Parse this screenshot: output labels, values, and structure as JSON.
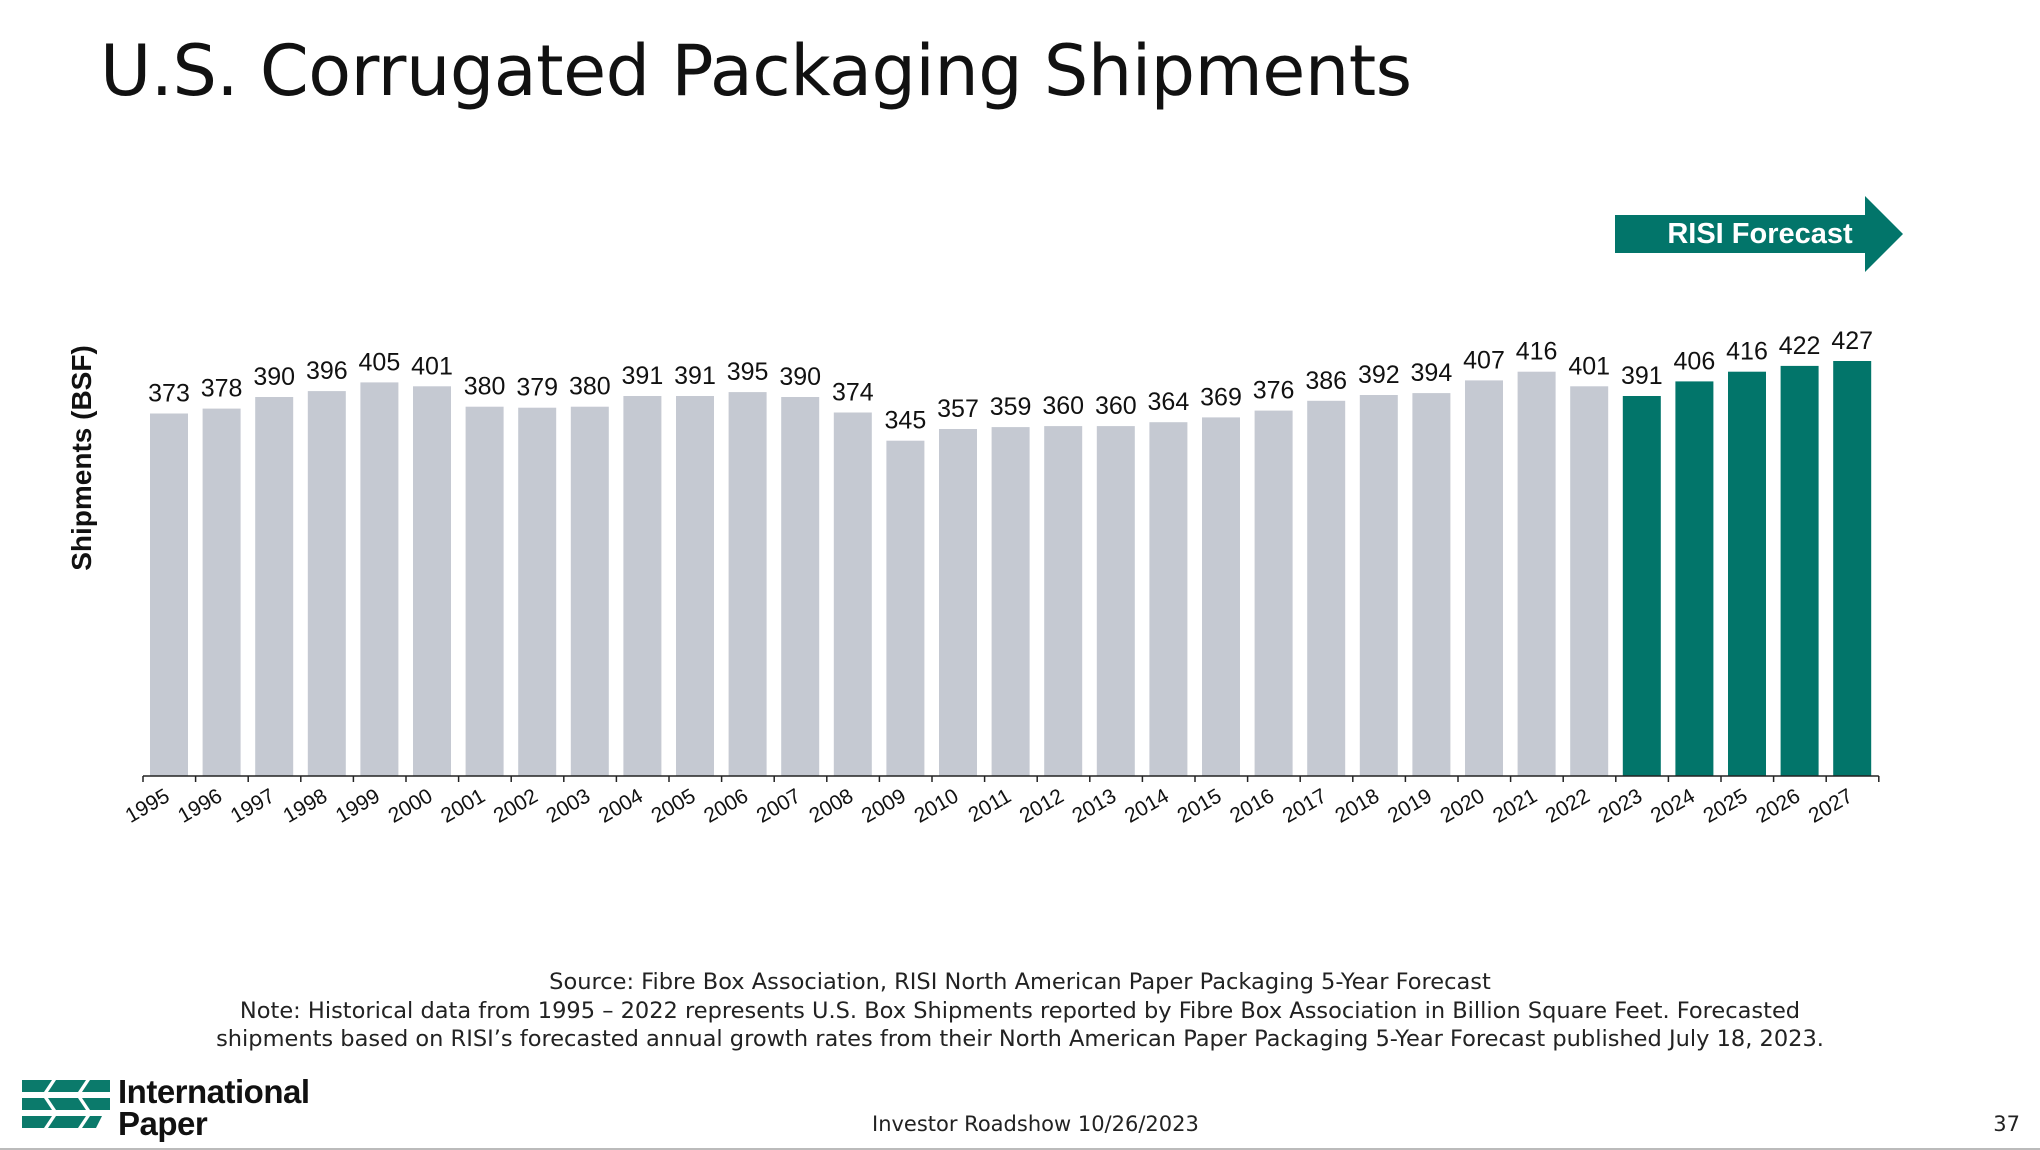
{
  "slide": {
    "title": "U.S. Corrugated Packaging Shipments",
    "source_line": "Source: Fibre Box Association, RISI North American Paper Packaging 5-Year Forecast",
    "note_line1": "Note: Historical data from 1995 – 2022 represents U.S. Box Shipments reported by Fibre Box Association in Billion Square Feet. Forecasted",
    "note_line2": "shipments based on RISI’s forecasted annual growth rates from their North American Paper Packaging 5-Year Forecast published July 18, 2023.",
    "footer": "Investor Roadshow 10/26/2023",
    "page_number": "37",
    "logo_line1": "International",
    "logo_line2": "Paper",
    "forecast_label": "RISI Forecast"
  },
  "colors": {
    "historical": "#c5c9d2",
    "forecast": "#02756a",
    "logo": "#0b7a6b"
  },
  "chart_data": {
    "type": "bar",
    "title": "",
    "xlabel": "",
    "ylabel": "Shipments (BSF)",
    "categories": [
      "1995",
      "1996",
      "1997",
      "1998",
      "1999",
      "2000",
      "2001",
      "2002",
      "2003",
      "2004",
      "2005",
      "2006",
      "2007",
      "2008",
      "2009",
      "2010",
      "2011",
      "2012",
      "2013",
      "2014",
      "2015",
      "2016",
      "2017",
      "2018",
      "2019",
      "2020",
      "2021",
      "2022",
      "2023",
      "2024",
      "2025",
      "2026",
      "2027"
    ],
    "values": [
      373,
      378,
      390,
      396,
      405,
      401,
      380,
      379,
      380,
      391,
      391,
      395,
      390,
      374,
      345,
      357,
      359,
      360,
      360,
      364,
      369,
      376,
      386,
      392,
      394,
      407,
      416,
      401,
      391,
      406,
      416,
      422,
      427
    ],
    "series": [
      {
        "name": "",
        "range": [
          "1995",
          "2022"
        ]
      },
      {
        "name": "RISI Forecast",
        "range": [
          "2023",
          "2027"
        ]
      }
    ],
    "grid": false,
    "data_labels": true
  }
}
